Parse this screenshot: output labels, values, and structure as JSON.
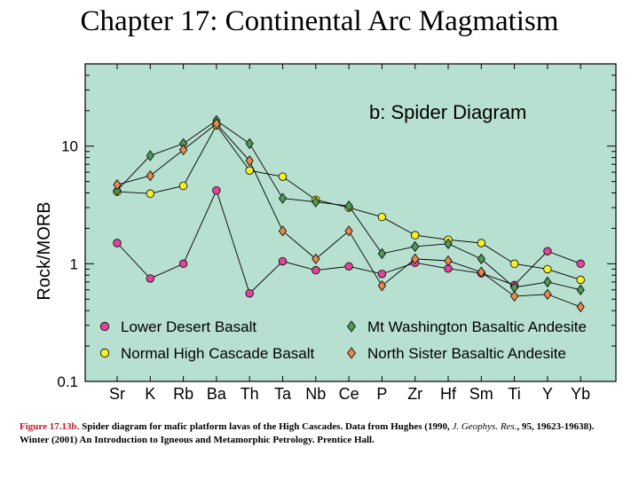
{
  "slide_title": "Chapter 17: Continental Arc Magmatism",
  "caption": {
    "figure_label": "Figure 17.13b.",
    "text_1": " Spider diagram for mafic platform lavas of the High Cascades. Data from Hughes (1990, ",
    "journal": "J. Geophys. Res.",
    "text_2": ", 95, 19623-19638).   Winter (2001) An Introduction to Igneous and Metamorphic Petrology. Prentice Hall."
  },
  "chart_data": {
    "type": "line",
    "title": "b: Spider Diagram",
    "ylabel": "Rock/MORB",
    "xlabel": "",
    "yscale": "log",
    "ylim": [
      0.1,
      50
    ],
    "yticks": [
      0.1,
      1,
      10
    ],
    "ytick_labels": [
      "0.1",
      "1",
      "10"
    ],
    "categories": [
      "Sr",
      "K",
      "Rb",
      "Ba",
      "Th",
      "Ta",
      "Nb",
      "Ce",
      "P",
      "Zr",
      "Hf",
      "Sm",
      "Ti",
      "Y",
      "Yb"
    ],
    "background_color": "#b8e0d0",
    "legend_position": "bottom",
    "series": [
      {
        "name": "Lower Desert Basalt",
        "marker": "circle",
        "color": "#e0459a",
        "values": [
          1.5,
          0.75,
          1.0,
          4.2,
          0.56,
          1.05,
          0.88,
          0.95,
          0.82,
          1.02,
          0.91,
          0.83,
          0.66,
          1.28,
          1.0
        ]
      },
      {
        "name": "Normal High Cascade Basalt",
        "marker": "circle",
        "color": "#f3f02a",
        "values": [
          4.1,
          3.95,
          4.6,
          15.0,
          6.2,
          5.5,
          3.5,
          3.0,
          2.5,
          1.75,
          1.6,
          1.5,
          1.0,
          0.9,
          0.73
        ]
      },
      {
        "name": "Mt Washington Basaltic Andesite",
        "marker": "diamond",
        "color": "#4f9a58",
        "values": [
          4.2,
          8.3,
          10.5,
          16.5,
          10.5,
          3.6,
          3.35,
          3.1,
          1.22,
          1.4,
          1.48,
          1.1,
          0.63,
          0.7,
          0.6
        ]
      },
      {
        "name": "North Sister Basaltic Andesite",
        "marker": "diamond",
        "color": "#e8884a",
        "values": [
          4.7,
          5.6,
          9.3,
          15.5,
          7.5,
          1.9,
          1.1,
          1.9,
          0.65,
          1.1,
          1.06,
          0.85,
          0.53,
          0.55,
          0.43
        ]
      }
    ]
  }
}
